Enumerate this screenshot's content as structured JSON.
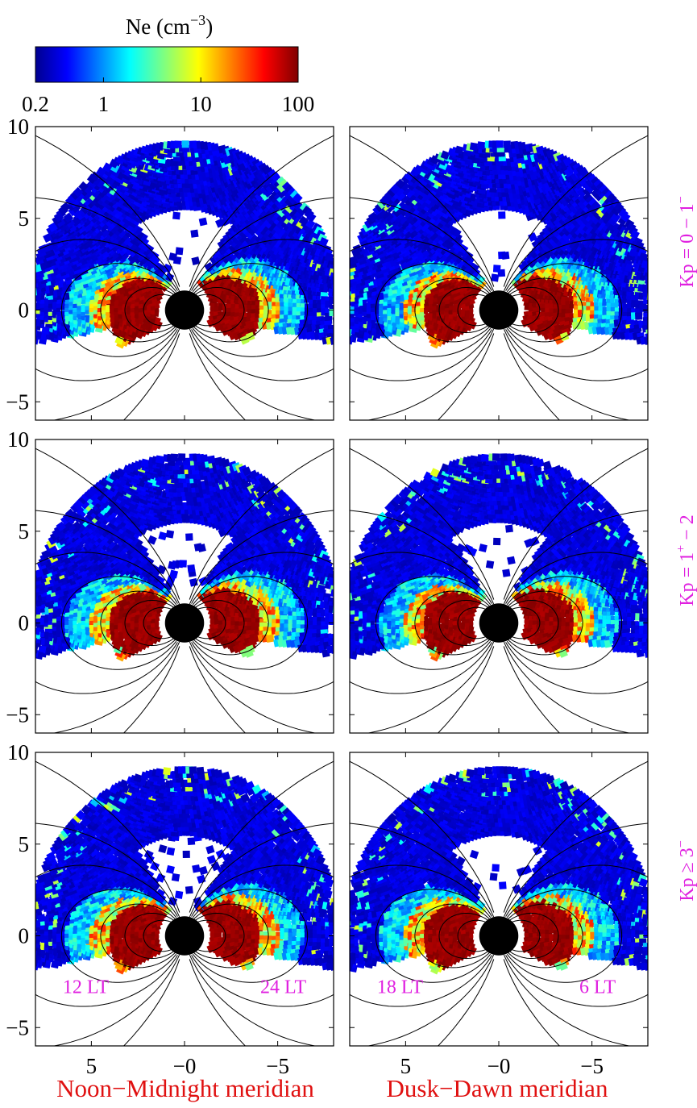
{
  "colorbar": {
    "label_main": "Ne (cm",
    "label_exp": "−3",
    "label_close": ")",
    "ticks": [
      "0.2",
      "1",
      "10",
      "100"
    ],
    "tick_values": [
      0.2,
      1,
      10,
      100
    ],
    "scale": "log",
    "colormap": "jet"
  },
  "rows": [
    {
      "label_base": "Kp = 0 − 1",
      "label_sup": "−"
    },
    {
      "label_base": "Kp = 1",
      "label_sup": "+",
      "label_tail": " − 2"
    },
    {
      "label_base": "Kp ≥ 3",
      "label_sup": "−"
    }
  ],
  "columns": [
    {
      "title": "Noon−Midnight meridian",
      "left_label": "12 LT",
      "right_label": "24 LT"
    },
    {
      "title": "Dusk−Dawn meridian",
      "left_label": "18 LT",
      "right_label": "6 LT"
    }
  ],
  "axes": {
    "y_ticks": [
      "10",
      "5",
      "0",
      "−5"
    ],
    "x_ticks": [
      "5",
      "−0",
      "−5"
    ],
    "xlim": [
      8,
      -8
    ],
    "ylim": [
      -6,
      10
    ]
  },
  "colors": {
    "row_label": "#e020e0",
    "col_title": "#e01010",
    "lt_label": "#e020e0"
  },
  "chart_data": {
    "type": "heatmap",
    "description_units": "Ne (cm^-3)",
    "x_range": [
      8,
      -8
    ],
    "y_range": [
      -6,
      10
    ],
    "earth_radius": 1,
    "panels": [
      {
        "row": "Kp = 0 − 1−",
        "column": "Noon−Midnight meridian"
      },
      {
        "row": "Kp = 0 − 1−",
        "column": "Dusk−Dawn meridian"
      },
      {
        "row": "Kp = 1+ − 2",
        "column": "Noon−Midnight meridian"
      },
      {
        "row": "Kp = 1+ − 2",
        "column": "Dusk−Dawn meridian"
      },
      {
        "row": "Kp ≥ 3−",
        "column": "Noon−Midnight meridian"
      },
      {
        "row": "Kp ≥ 3−",
        "column": "Dusk−Dawn meridian"
      }
    ]
  }
}
